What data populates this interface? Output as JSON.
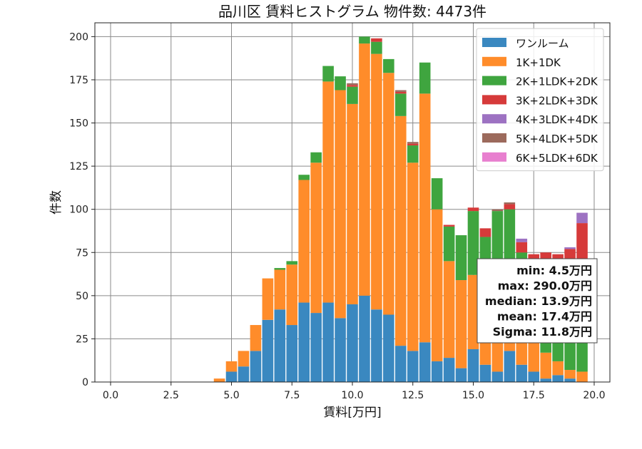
{
  "chart_data": {
    "type": "bar",
    "stacked": true,
    "title": "品川区 賃料ヒストグラム 物件数: 4473件",
    "xlabel": "賃料[万円]",
    "ylabel": "件数",
    "xlim": [
      -0.65,
      20.65
    ],
    "ylim": [
      0,
      208
    ],
    "xticks": [
      "0.0",
      "2.5",
      "5.0",
      "7.5",
      "10.0",
      "12.5",
      "15.0",
      "17.5",
      "20.0"
    ],
    "xtick_values": [
      0,
      2.5,
      5,
      7.5,
      10,
      12.5,
      15,
      17.5,
      20
    ],
    "yticks": [
      "0",
      "25",
      "50",
      "75",
      "100",
      "125",
      "150",
      "175",
      "200"
    ],
    "ytick_values": [
      0,
      25,
      50,
      75,
      100,
      125,
      150,
      175,
      200
    ],
    "grid": true,
    "legend_position": "top-right",
    "bin_width": 0.5,
    "x": [
      4.5,
      5.0,
      5.5,
      6.0,
      6.5,
      7.0,
      7.5,
      8.0,
      8.5,
      9.0,
      9.5,
      10.0,
      10.5,
      11.0,
      11.5,
      12.0,
      12.5,
      13.0,
      13.5,
      14.0,
      14.5,
      15.0,
      15.5,
      16.0,
      16.5,
      17.0,
      17.5,
      18.0,
      18.5,
      19.0,
      19.5
    ],
    "series": [
      {
        "name": "ワンルーム",
        "color": "#3a88c0",
        "values": [
          0,
          6,
          9,
          18,
          36,
          42,
          33,
          46,
          40,
          46,
          37,
          45,
          50,
          42,
          39,
          21,
          18,
          23,
          12,
          14,
          8,
          19,
          10,
          6,
          18,
          10,
          6,
          2,
          4,
          2,
          0
        ]
      },
      {
        "name": "1K+1DK",
        "color": "#ff8c2a",
        "values": [
          2,
          6,
          9,
          15,
          24,
          23,
          35,
          71,
          87,
          128,
          132,
          116,
          146,
          148,
          140,
          133,
          109,
          144,
          88,
          56,
          51,
          43,
          28,
          30,
          32,
          20,
          20,
          15,
          8,
          5,
          6
        ]
      },
      {
        "name": "2K+1LDK+2DK",
        "color": "#3fa53f",
        "values": [
          0,
          0,
          0,
          0,
          0,
          1,
          2,
          3,
          6,
          9,
          8,
          10,
          4,
          7,
          8,
          13,
          10,
          18,
          18,
          20,
          26,
          37,
          46,
          63,
          50,
          45,
          40,
          50,
          50,
          60,
          55
        ]
      },
      {
        "name": "3K+2LDK+3DK",
        "color": "#d63a3a",
        "values": [
          0,
          0,
          0,
          0,
          0,
          0,
          0,
          0,
          0,
          0,
          0,
          1,
          0,
          2,
          0,
          1,
          1,
          0,
          0,
          1,
          0,
          2,
          5,
          0,
          3,
          6,
          8,
          8,
          12,
          10,
          31
        ]
      },
      {
        "name": "4K+3LDK+4DK",
        "color": "#9d72c2",
        "values": [
          0,
          0,
          0,
          0,
          0,
          0,
          0,
          0,
          0,
          0,
          0,
          0,
          0,
          0,
          0,
          0,
          0,
          0,
          0,
          0,
          0,
          0,
          0,
          0,
          0,
          2,
          0,
          0,
          0,
          1,
          6
        ]
      },
      {
        "name": "5K+4LDK+5DK",
        "color": "#9c6a5c",
        "values": [
          0,
          0,
          0,
          0,
          0,
          0,
          0,
          0,
          0,
          0,
          0,
          1,
          0,
          0,
          0,
          1,
          1,
          0,
          0,
          0,
          0,
          0,
          0,
          1,
          1,
          0,
          0,
          0,
          0,
          0,
          0
        ]
      },
      {
        "name": "6K+5LDK+6DK",
        "color": "#e87fcf",
        "values": [
          0,
          0,
          0,
          0,
          0,
          0,
          0,
          0,
          0,
          0,
          0,
          0,
          0,
          0,
          0,
          0,
          0,
          0,
          0,
          0,
          0,
          0,
          0,
          0,
          0,
          0,
          0,
          0,
          0,
          0,
          0
        ]
      }
    ],
    "stats_box": {
      "position": "right",
      "lines": [
        "min: 4.5万円",
        "max: 290.0万円",
        "median: 13.9万円",
        "mean: 17.4万円",
        "Sigma: 11.8万円"
      ]
    }
  }
}
